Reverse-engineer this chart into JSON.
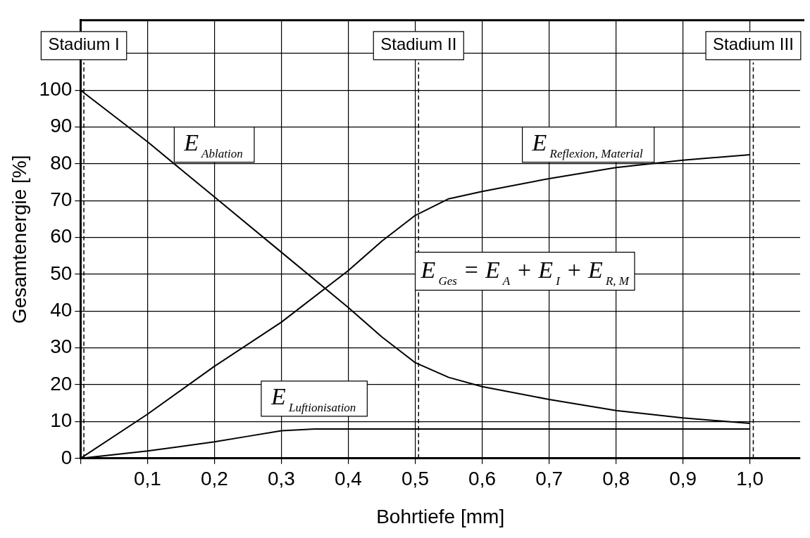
{
  "chart_data": {
    "type": "line",
    "xlabel": "Bohrtiefe [mm]",
    "ylabel": "Gesamtenergie [%]",
    "xlim": [
      0,
      1.075
    ],
    "ylim": [
      0,
      119
    ],
    "xticks": [
      {
        "value": 0,
        "label": null
      },
      {
        "value": 0.1,
        "label": "0,1"
      },
      {
        "value": 0.2,
        "label": "0,2"
      },
      {
        "value": 0.3,
        "label": "0,3"
      },
      {
        "value": 0.4,
        "label": "0,4"
      },
      {
        "value": 0.5,
        "label": "0,5"
      },
      {
        "value": 0.6,
        "label": "0,6"
      },
      {
        "value": 0.7,
        "label": "0,7"
      },
      {
        "value": 0.8,
        "label": "0,8"
      },
      {
        "value": 0.9,
        "label": "0,9"
      },
      {
        "value": 1.0,
        "label": "1,0"
      }
    ],
    "yticks": [
      0,
      10,
      20,
      30,
      40,
      50,
      60,
      70,
      80,
      90,
      100,
      {
        "value": 110,
        "label": null
      }
    ],
    "grid": true,
    "legend": false,
    "marker": "none",
    "line_style": "solid",
    "series": [
      {
        "name": "E$_{Ablation}$",
        "color": "#000000",
        "x": [
          0,
          0.1,
          0.2,
          0.3,
          0.4,
          0.45,
          0.5,
          0.55,
          0.6,
          0.7,
          0.8,
          0.9,
          1.0
        ],
        "values": [
          100,
          86,
          71,
          56,
          41,
          33,
          26,
          22,
          19.5,
          16,
          13,
          11,
          9.5
        ]
      },
      {
        "name": "E$_{Reflexion, Material}$",
        "color": "#000000",
        "x": [
          0,
          0.1,
          0.2,
          0.3,
          0.4,
          0.45,
          0.5,
          0.55,
          0.6,
          0.7,
          0.8,
          0.9,
          1.0
        ],
        "values": [
          0,
          12,
          25,
          37,
          51,
          59,
          66,
          70.5,
          72.5,
          76,
          79,
          81,
          82.5
        ]
      },
      {
        "name": "E$_{Luftionisation}$",
        "color": "#000000",
        "x": [
          0,
          0.1,
          0.2,
          0.25,
          0.3,
          0.35,
          0.4,
          0.5,
          1.0
        ],
        "values": [
          0,
          2,
          4.5,
          6,
          7.5,
          8,
          8,
          8,
          8
        ]
      }
    ],
    "ref_lines": [
      {
        "axis": "x",
        "value": 0.005,
        "label": "Stadium I",
        "line_style": "dashed",
        "color": "#000000"
      },
      {
        "axis": "x",
        "value": 0.505,
        "label": "Stadium II",
        "line_style": "dashed",
        "color": "#000000"
      },
      {
        "axis": "x",
        "value": 1.005,
        "label": "Stadium III",
        "line_style": "dashed",
        "color": "#000000"
      }
    ],
    "annotations": [
      "E$_{Ges}$ = E$_{A}$ + E$_{I}$ + E$_{R, M}$"
    ]
  }
}
